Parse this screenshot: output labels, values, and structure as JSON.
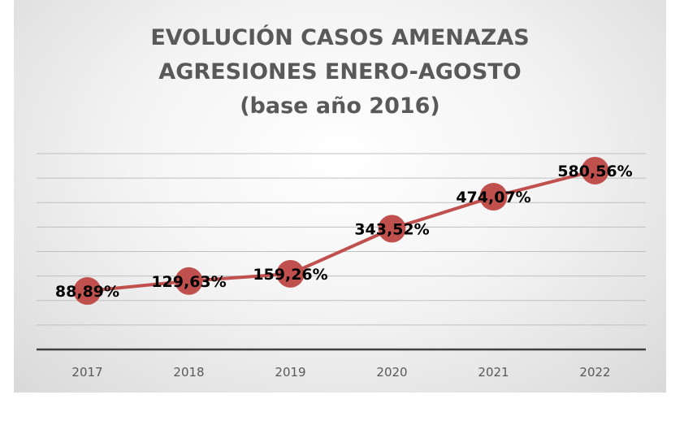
{
  "chart_data": {
    "type": "line",
    "title_lines": [
      "EVOLUCIÓN CASOS AMENAZAS",
      "AGRESIONES ENERO-AGOSTO",
      "(base año 2016)"
    ],
    "categories": [
      "2017",
      "2018",
      "2019",
      "2020",
      "2021",
      "2022"
    ],
    "values": [
      88.89,
      129.63,
      159.26,
      343.52,
      474.07,
      580.56
    ],
    "data_labels": [
      "88,89%",
      "129,63%",
      "159,26%",
      "343,52%",
      "474,07%",
      "580,56%"
    ],
    "ylim": [
      -150,
      700
    ],
    "y_gridlines": [
      -150,
      -100,
      -50,
      0,
      50,
      100,
      150,
      200,
      250,
      300,
      350,
      400,
      450,
      500,
      550,
      600,
      650,
      700
    ],
    "grid": true,
    "legend": "none",
    "colors": {
      "line": "#c0504d",
      "marker": "#c0504d",
      "grid": "#bfbfbf",
      "axis": "#404040",
      "label": "#000000",
      "tick": "#595959",
      "title": "#595959"
    }
  }
}
